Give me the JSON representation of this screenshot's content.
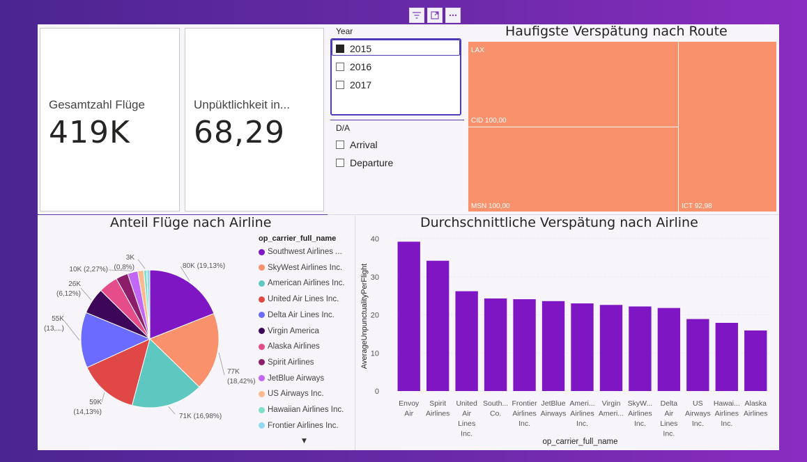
{
  "toolbar": {
    "icons": [
      "filter-icon",
      "focus-mode-icon",
      "more-options-icon"
    ]
  },
  "cards": {
    "flights": {
      "label": "Gesamtzahl Flüge",
      "value": "419K"
    },
    "unpunctuality": {
      "label": "Unpüktlichkeit in...",
      "value": "68,29"
    }
  },
  "slicer_year": {
    "title": "Year",
    "options": [
      {
        "label": "2015",
        "checked": true
      },
      {
        "label": "2016",
        "checked": false
      },
      {
        "label": "2017",
        "checked": false
      }
    ]
  },
  "slicer_da": {
    "title": "D/A",
    "options": [
      {
        "label": "Arrival",
        "checked": false
      },
      {
        "label": "Departure",
        "checked": false
      }
    ]
  },
  "treemap": {
    "title": "Haufigste Verspätung nach Route",
    "color": "#f9916d",
    "tiles": [
      {
        "label": "LAX"
      },
      {
        "label": "CID 100,00"
      },
      {
        "label": "MSN 100,00"
      },
      {
        "label": "ICT 92,98"
      }
    ]
  },
  "pie": {
    "title": "Anteil Flüge nach Airline",
    "legend_title": "op_carrier_full_name",
    "legend": [
      {
        "label": "Southwest Airlines ...",
        "color": "#7f16c4"
      },
      {
        "label": "SkyWest Airlines Inc.",
        "color": "#f9916d"
      },
      {
        "label": "American Airlines Inc.",
        "color": "#5ec8c0"
      },
      {
        "label": "United Air Lines Inc.",
        "color": "#e04848"
      },
      {
        "label": "Delta Air Lines Inc.",
        "color": "#6b6bff"
      },
      {
        "label": "Virgin America",
        "color": "#3d0658"
      },
      {
        "label": "Alaska Airlines",
        "color": "#e54d8a"
      },
      {
        "label": "Spirit Airlines",
        "color": "#8b1d6b"
      },
      {
        "label": "JetBlue Airways",
        "color": "#c266f5"
      },
      {
        "label": "US Airways Inc.",
        "color": "#fbb990"
      },
      {
        "label": "Hawaiian Airlines Inc.",
        "color": "#7ee0c8"
      },
      {
        "label": "Frontier Airlines Inc.",
        "color": "#8fd8f0"
      }
    ],
    "scroll_icon": "caret-down-icon"
  },
  "bar": {
    "title": "Durchschnittliche Verspätung nach Airline",
    "color": "#7f16c4"
  },
  "chart_data": [
    {
      "type": "pie",
      "title": "Anteil Flüge nach Airline",
      "series": [
        {
          "name": "Southwest Airlines ...",
          "value": 80,
          "share": 19.13,
          "label": "80K (19,13%)"
        },
        {
          "name": "SkyWest Airlines Inc.",
          "value": 77,
          "share": 18.42,
          "label": "77K (18,42%)"
        },
        {
          "name": "American Airlines Inc.",
          "value": 71,
          "share": 16.98,
          "label": "71K (16,98%)"
        },
        {
          "name": "United Air Lines Inc.",
          "value": 59,
          "share": 14.13,
          "label": "59K (14,13%)"
        },
        {
          "name": "Delta Air Lines Inc.",
          "value": 55,
          "share": 13.1,
          "label": "55K (13,...)"
        },
        {
          "name": "Virgin America",
          "value": 26,
          "share": 6.12,
          "label": "26K (6,12%)"
        },
        {
          "name": "Alaska Airlines",
          "value": 19,
          "share": 4.5,
          "label": ""
        },
        {
          "name": "Spirit Airlines",
          "value": 12,
          "share": 2.8,
          "label": ""
        },
        {
          "name": "JetBlue Airways",
          "value": 10,
          "share": 2.27,
          "label": "10K (2,27%)"
        },
        {
          "name": "US Airways Inc.",
          "value": 6,
          "share": 1.5,
          "label": ""
        },
        {
          "name": "Hawaiian Airlines Inc.",
          "value": 3,
          "share": 0.8,
          "label": "3K (0,8%)"
        },
        {
          "name": "Frontier Airlines Inc.",
          "value": 3,
          "share": 0.7,
          "label": ""
        }
      ]
    },
    {
      "type": "bar",
      "title": "Durchschnittliche Verspätung nach Airline",
      "xlabel": "op_carrier_full_name",
      "ylabel": "AverageUnpunctualityPerFlight",
      "ylim": [
        0,
        40
      ],
      "yticks": [
        0,
        10,
        20,
        30,
        40
      ],
      "categories": [
        [
          "Envoy",
          "Air"
        ],
        [
          "Spirit",
          "Airlines"
        ],
        [
          "United",
          "Air",
          "Lines",
          "Inc."
        ],
        [
          "South...",
          "Co."
        ],
        [
          "Frontier",
          "Airlines",
          "Inc."
        ],
        [
          "JetBlue",
          "Airways"
        ],
        [
          "Ameri...",
          "Airlines",
          "Inc."
        ],
        [
          "Virgin",
          "Ameri..."
        ],
        [
          "SkyW...",
          "Airlines",
          "Inc."
        ],
        [
          "Delta",
          "Air",
          "Lines",
          "Inc."
        ],
        [
          "US",
          "Airways",
          "Inc."
        ],
        [
          "Hawai...",
          "Airlines",
          "Inc."
        ],
        [
          "Alaska",
          "Airlines"
        ]
      ],
      "values": [
        39.2,
        34.2,
        26.2,
        24.3,
        24.1,
        23.6,
        23.0,
        22.6,
        22.2,
        21.8,
        18.9,
        17.9,
        15.9
      ],
      "grid": true
    }
  ]
}
